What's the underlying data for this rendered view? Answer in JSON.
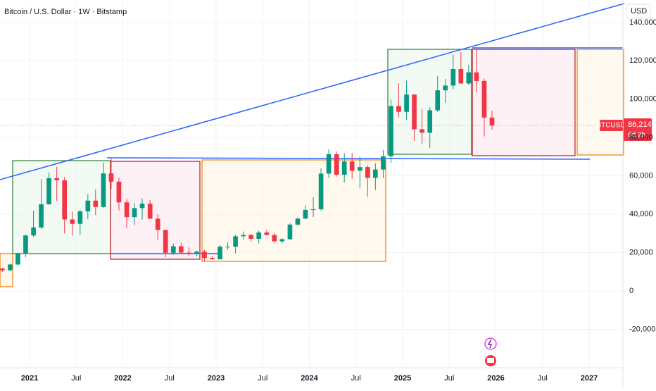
{
  "chart_data": {
    "type": "candlestick",
    "title": "Bitcoin / U.S. Dollar · 1W · Bitstamp",
    "currency": "USD",
    "symbol": "BTCUSD",
    "last_label": {
      "value": 86214,
      "label": "86,214"
    },
    "countdown": "6d 2h",
    "up_color": "#089981",
    "down_color": "#f23645",
    "grid": true,
    "xlim": [
      2020.683,
      2027.362
    ],
    "ylim": [
      -39300,
      151700
    ],
    "xticks": [
      2021,
      {
        "value": 2021.5,
        "label": "Jul"
      },
      2022,
      {
        "value": 2022.5,
        "label": "Jul"
      },
      2023,
      {
        "value": 2023.5,
        "label": "Jul"
      },
      2024,
      {
        "value": 2024.5,
        "label": "Jul"
      },
      2025,
      {
        "value": 2025.5,
        "label": "Jul"
      },
      2026,
      {
        "value": 2026.5,
        "label": "Jul"
      },
      2027
    ],
    "yticks": [
      {
        "value": -20000,
        "label": "-20,000"
      },
      0,
      {
        "value": 20000,
        "label": "20,000"
      },
      {
        "value": 40000,
        "label": "40,000"
      },
      {
        "value": 60000,
        "label": "60,000"
      },
      {
        "value": 80000,
        "label": "80,000"
      },
      {
        "value": 100000,
        "label": "100,000"
      },
      {
        "value": 120000,
        "label": "120,000"
      },
      {
        "value": 140000,
        "label": "140,000"
      }
    ],
    "x": [
      2020.708,
      2020.792,
      2020.875,
      2020.958,
      2021.042,
      2021.125,
      2021.208,
      2021.292,
      2021.375,
      2021.458,
      2021.542,
      2021.625,
      2021.708,
      2021.792,
      2021.875,
      2021.958,
      2022.042,
      2022.125,
      2022.208,
      2022.292,
      2022.375,
      2022.458,
      2022.542,
      2022.625,
      2022.708,
      2022.792,
      2022.875,
      2022.958,
      2023.042,
      2023.125,
      2023.208,
      2023.292,
      2023.375,
      2023.458,
      2023.542,
      2023.625,
      2023.708,
      2023.792,
      2023.875,
      2023.958,
      2024.042,
      2024.125,
      2024.208,
      2024.292,
      2024.375,
      2024.458,
      2024.542,
      2024.625,
      2024.708,
      2024.792,
      2024.875,
      2024.958,
      2025.042,
      2025.125,
      2025.208,
      2025.292,
      2025.375,
      2025.458,
      2025.542,
      2025.625,
      2025.708,
      2025.792,
      2025.875,
      2025.958
    ],
    "open": [
      11650,
      10780,
      13800,
      19700,
      28950,
      33100,
      45200,
      58800,
      57700,
      37300,
      35000,
      41500,
      47100,
      43800,
      61300,
      57000,
      46200,
      38500,
      43200,
      45500,
      37700,
      31800,
      19900,
      23300,
      20000,
      19400,
      20500,
      17200,
      16500,
      23100,
      23100,
      28500,
      29200,
      27200,
      30500,
      29200,
      25900,
      27000,
      34600,
      37700,
      42300,
      42600,
      61200,
      71300,
      60600,
      67500,
      62700,
      64600,
      59000,
      63300,
      70200,
      96400,
      93400,
      102400,
      84300,
      82500,
      94200,
      104600,
      107100,
      115700,
      108200,
      114000,
      109500,
      90400
    ],
    "high": [
      12070,
      14100,
      19900,
      29300,
      41900,
      58300,
      61800,
      64800,
      59500,
      41300,
      42200,
      50500,
      52900,
      67000,
      69000,
      59100,
      47900,
      45800,
      48200,
      47400,
      40000,
      31900,
      24700,
      25200,
      22800,
      21000,
      21500,
      18400,
      23900,
      25300,
      29200,
      31000,
      29800,
      31400,
      31800,
      30200,
      27500,
      35200,
      38400,
      44700,
      48900,
      63900,
      73800,
      72800,
      71900,
      71900,
      70000,
      65600,
      66500,
      73600,
      99800,
      108300,
      109600,
      102500,
      95000,
      95800,
      111900,
      110500,
      123200,
      124500,
      117900,
      126200,
      110700,
      94000
    ],
    "low": [
      9880,
      10400,
      13200,
      17600,
      28100,
      32300,
      45000,
      47000,
      30000,
      28800,
      29300,
      37400,
      39600,
      43300,
      53300,
      42000,
      32900,
      34300,
      37200,
      37600,
      26700,
      17600,
      18800,
      19600,
      18100,
      18200,
      15500,
      16300,
      16500,
      21400,
      19600,
      26900,
      25800,
      24800,
      28900,
      25200,
      24900,
      26600,
      34100,
      37600,
      38600,
      41900,
      59000,
      59600,
      56600,
      58500,
      53500,
      49100,
      52600,
      58900,
      66800,
      90500,
      89200,
      78200,
      76600,
      74400,
      93400,
      98200,
      105300,
      108000,
      107300,
      103500,
      80600,
      84000
    ],
    "close": [
      10780,
      13800,
      19700,
      28950,
      33100,
      45200,
      58800,
      57700,
      37300,
      35000,
      41500,
      47100,
      43800,
      61300,
      57000,
      46200,
      38500,
      43200,
      45500,
      37700,
      31800,
      19900,
      23300,
      20000,
      19400,
      20500,
      17200,
      16500,
      23100,
      23100,
      28500,
      29200,
      27200,
      30500,
      29200,
      25900,
      27000,
      34600,
      37700,
      42300,
      42600,
      61200,
      71300,
      60600,
      67500,
      62700,
      64600,
      59000,
      63300,
      70200,
      96400,
      93400,
      102400,
      84300,
      82500,
      94200,
      104600,
      107100,
      115700,
      108200,
      114000,
      109500,
      90400,
      86214
    ]
  }
}
